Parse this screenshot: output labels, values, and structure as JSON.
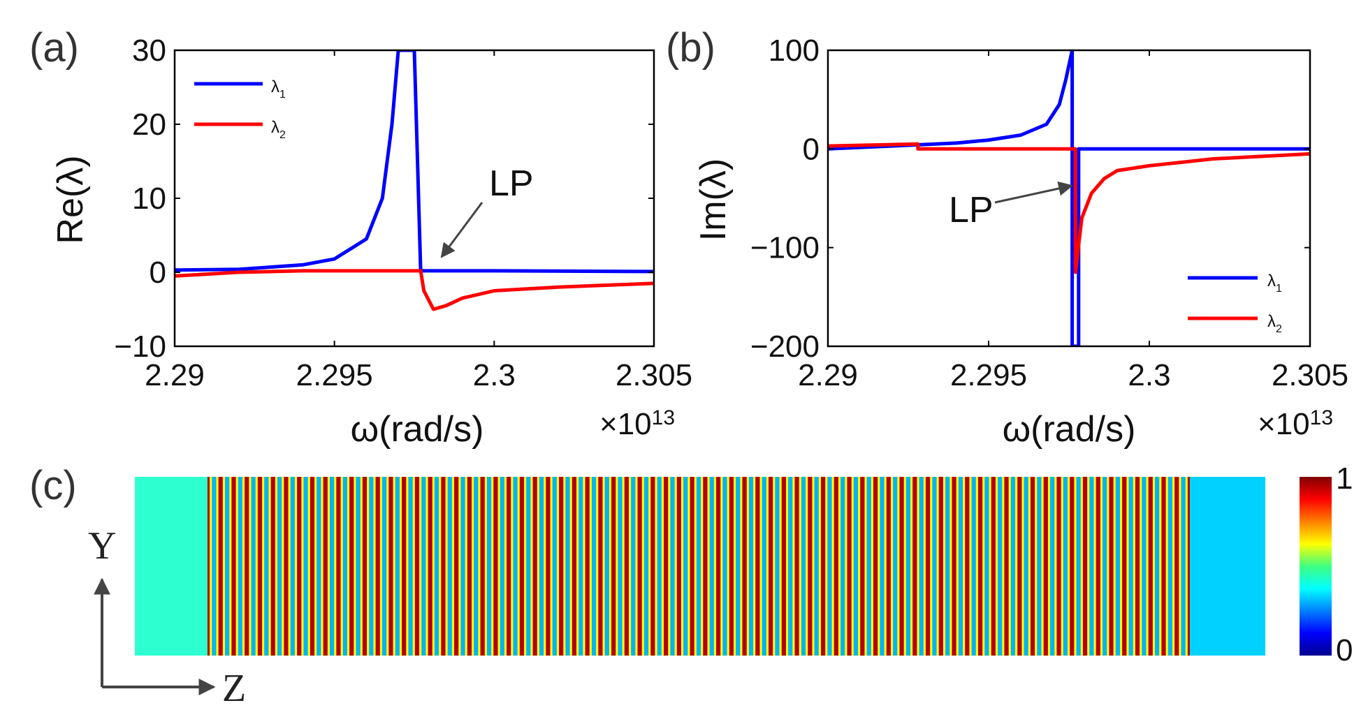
{
  "panel_labels": [
    "(a)",
    "(b)",
    "(c)"
  ],
  "chart_data": [
    {
      "type": "line",
      "panel": "(a)",
      "xlabel": "ω(rad/s)",
      "ylabel": "Re(λ)",
      "x_multiplier": "×10",
      "x_multiplier_exp": "13",
      "xlim": [
        2.29,
        2.305
      ],
      "ylim": [
        -10,
        30
      ],
      "xticks": [
        2.29,
        2.295,
        2.3,
        2.305
      ],
      "xtick_labels": [
        "2.29",
        "2.295",
        "2.3",
        "2.305"
      ],
      "yticks": [
        -10,
        0,
        10,
        20,
        30
      ],
      "ytick_labels": [
        "−10",
        "0",
        "10",
        "20",
        "30"
      ],
      "grid": false,
      "legend_position": "top-left",
      "annotation": {
        "text": "LP",
        "x": 2.2977,
        "y": 0
      },
      "series": [
        {
          "name": "λ1",
          "color": "#0000ff",
          "x": [
            2.29,
            2.292,
            2.294,
            2.295,
            2.296,
            2.2965,
            2.2968,
            2.297,
            2.2971,
            2.2973,
            2.2975,
            2.2977,
            2.298,
            2.3,
            2.305
          ],
          "y": [
            0.3,
            0.4,
            1.0,
            1.8,
            4.5,
            10.0,
            20.0,
            30.0,
            30.0,
            30.0,
            30.0,
            0.2,
            0.2,
            0.2,
            0.1
          ]
        },
        {
          "name": "λ2",
          "color": "#ff0000",
          "x": [
            2.29,
            2.292,
            2.294,
            2.296,
            2.2977,
            2.2978,
            2.2981,
            2.2985,
            2.299,
            2.3,
            2.302,
            2.305
          ],
          "y": [
            -0.5,
            0.0,
            0.2,
            0.2,
            0.2,
            -2.5,
            -5.0,
            -4.5,
            -3.5,
            -2.5,
            -2.0,
            -1.5
          ]
        }
      ]
    },
    {
      "type": "line",
      "panel": "(b)",
      "xlabel": "ω(rad/s)",
      "ylabel": "Im(λ)",
      "x_multiplier": "×10",
      "x_multiplier_exp": "13",
      "xlim": [
        2.29,
        2.305
      ],
      "ylim": [
        -200,
        100
      ],
      "xticks": [
        2.29,
        2.295,
        2.3,
        2.305
      ],
      "xtick_labels": [
        "2.29",
        "2.295",
        "2.3",
        "2.305"
      ],
      "yticks": [
        -200,
        -100,
        0,
        100
      ],
      "ytick_labels": [
        "−200",
        "−100",
        "0",
        "100"
      ],
      "grid": false,
      "legend_position": "bottom-right",
      "annotation": {
        "text": "LP",
        "x": 2.2977,
        "y": -40
      },
      "series": [
        {
          "name": "λ1",
          "color": "#0000ff",
          "x": [
            2.29,
            2.292,
            2.294,
            2.295,
            2.296,
            2.2968,
            2.2972,
            2.2974,
            2.2976,
            2.2976,
            2.2976,
            2.2978,
            2.2978,
            2.2978,
            2.3,
            2.305
          ],
          "y": [
            0,
            3,
            6,
            9,
            14,
            25,
            45,
            70,
            100,
            -200,
            -200,
            -200,
            -130,
            0,
            0,
            0
          ]
        },
        {
          "name": "λ2",
          "color": "#ff0000",
          "x": [
            2.29,
            2.2928,
            2.2928,
            2.295,
            2.2977,
            2.2977,
            2.2979,
            2.2982,
            2.2986,
            2.299,
            2.3,
            2.302,
            2.305
          ],
          "y": [
            3,
            5,
            0,
            0,
            0,
            -125,
            -70,
            -45,
            -30,
            -22,
            -17,
            -10,
            -5
          ]
        }
      ]
    },
    {
      "type": "heatmap",
      "panel": "(c)",
      "colorbar_ticks": [
        1,
        0
      ],
      "colorbar_tick_labels": [
        "1",
        "0"
      ],
      "axis_labels": [
        "Y",
        "Z"
      ],
      "left_region_value": 0.42,
      "right_region_value": 0.33,
      "stripe_count": 75,
      "stripe_range": [
        0.25,
        1.0
      ]
    }
  ]
}
